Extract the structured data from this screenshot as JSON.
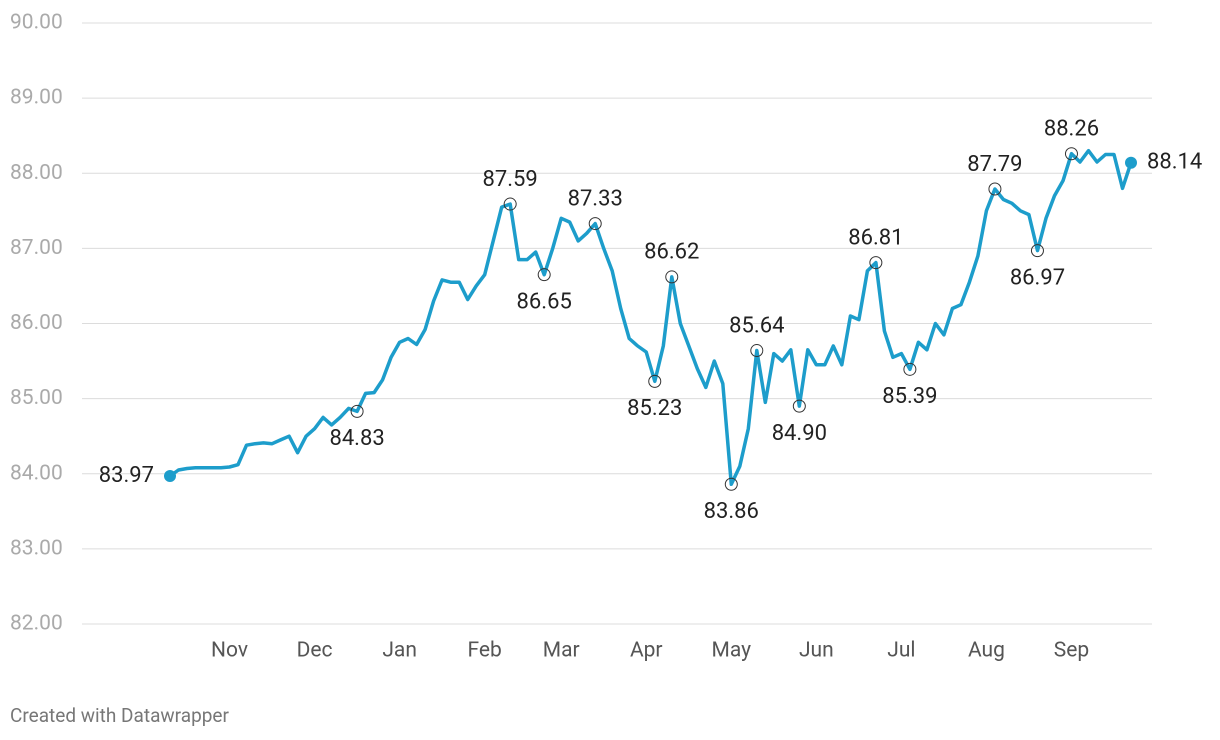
{
  "chart_data": {
    "type": "line",
    "categories": [
      null,
      null,
      null,
      null,
      null,
      null,
      null,
      "Nov",
      null,
      null,
      null,
      null,
      null,
      null,
      null,
      null,
      null,
      "Dec",
      null,
      null,
      null,
      null,
      null,
      null,
      null,
      null,
      null,
      "Jan",
      null,
      null,
      null,
      null,
      null,
      null,
      null,
      null,
      null,
      "Feb",
      null,
      null,
      null,
      null,
      null,
      null,
      null,
      null,
      "Mar",
      null,
      null,
      null,
      null,
      null,
      null,
      null,
      null,
      null,
      "Apr",
      null,
      null,
      null,
      null,
      null,
      null,
      null,
      null,
      null,
      "May",
      null,
      null,
      null,
      null,
      null,
      null,
      null,
      null,
      null,
      "Jun",
      null,
      null,
      null,
      null,
      null,
      null,
      null,
      null,
      null,
      "Jul",
      null,
      null,
      null,
      null,
      null,
      null,
      null,
      null,
      null,
      "Aug",
      null,
      null,
      null,
      null,
      null,
      null,
      null,
      null,
      null,
      "Sep",
      null,
      null,
      null,
      null,
      null,
      null,
      null
    ],
    "values": [
      83.97,
      84.05,
      84.07,
      84.08,
      84.08,
      84.08,
      84.08,
      84.09,
      84.12,
      84.38,
      84.4,
      84.41,
      84.4,
      84.45,
      84.5,
      84.28,
      84.5,
      84.6,
      84.75,
      84.65,
      84.75,
      84.87,
      84.83,
      85.07,
      85.08,
      85.25,
      85.55,
      85.75,
      85.8,
      85.72,
      85.92,
      86.3,
      86.58,
      86.55,
      86.55,
      86.32,
      86.5,
      86.65,
      87.1,
      87.55,
      87.59,
      86.85,
      86.85,
      86.95,
      86.65,
      87.0,
      87.4,
      87.35,
      87.1,
      87.2,
      87.33,
      87.0,
      86.7,
      86.2,
      85.8,
      85.7,
      85.62,
      85.23,
      85.7,
      86.62,
      86.0,
      85.7,
      85.4,
      85.15,
      85.5,
      85.2,
      83.86,
      84.1,
      84.6,
      85.64,
      84.95,
      85.6,
      85.5,
      85.65,
      84.9,
      85.65,
      85.45,
      85.45,
      85.7,
      85.45,
      86.1,
      86.05,
      86.7,
      86.81,
      85.9,
      85.55,
      85.6,
      85.39,
      85.75,
      85.65,
      86.0,
      85.85,
      86.2,
      86.25,
      86.55,
      86.9,
      87.5,
      87.79,
      87.65,
      87.6,
      87.5,
      87.45,
      86.97,
      87.4,
      87.7,
      87.9,
      88.26,
      88.15,
      88.3,
      88.15,
      88.25,
      88.25,
      87.8,
      88.14
    ],
    "value_labels": [
      "83.97",
      null,
      null,
      null,
      null,
      null,
      null,
      null,
      null,
      null,
      null,
      null,
      null,
      null,
      null,
      null,
      null,
      null,
      null,
      null,
      null,
      null,
      "84.83",
      null,
      null,
      null,
      null,
      null,
      null,
      null,
      null,
      null,
      null,
      null,
      null,
      null,
      null,
      null,
      null,
      null,
      "87.59",
      null,
      null,
      null,
      "86.65",
      null,
      null,
      null,
      null,
      null,
      "87.33",
      null,
      null,
      null,
      null,
      null,
      null,
      "85.23",
      null,
      "86.62",
      null,
      null,
      null,
      null,
      null,
      null,
      "83.86",
      null,
      null,
      "85.64",
      null,
      null,
      null,
      null,
      "84.90",
      null,
      null,
      null,
      null,
      null,
      null,
      null,
      null,
      "86.81",
      null,
      null,
      null,
      "85.39",
      null,
      null,
      null,
      null,
      null,
      null,
      null,
      null,
      null,
      "87.79",
      null,
      null,
      null,
      null,
      "86.97",
      null,
      null,
      null,
      "88.26",
      null,
      null,
      null,
      null,
      null,
      null,
      "88.14"
    ],
    "color": "#1d9dcb",
    "ylim": [
      82,
      90
    ],
    "yticks": [
      {
        "value": 82,
        "label": "82.00"
      },
      {
        "value": 83,
        "label": "83.00"
      },
      {
        "value": 84,
        "label": "84.00"
      },
      {
        "value": 85,
        "label": "85.00"
      },
      {
        "value": 86,
        "label": "86.00"
      },
      {
        "value": 87,
        "label": "87.00"
      },
      {
        "value": 88,
        "label": "88.00"
      },
      {
        "value": 89,
        "label": "89.00"
      },
      {
        "value": 90,
        "label": "90.00"
      }
    ],
    "grid": true
  },
  "footer": "Created with Datawrapper"
}
